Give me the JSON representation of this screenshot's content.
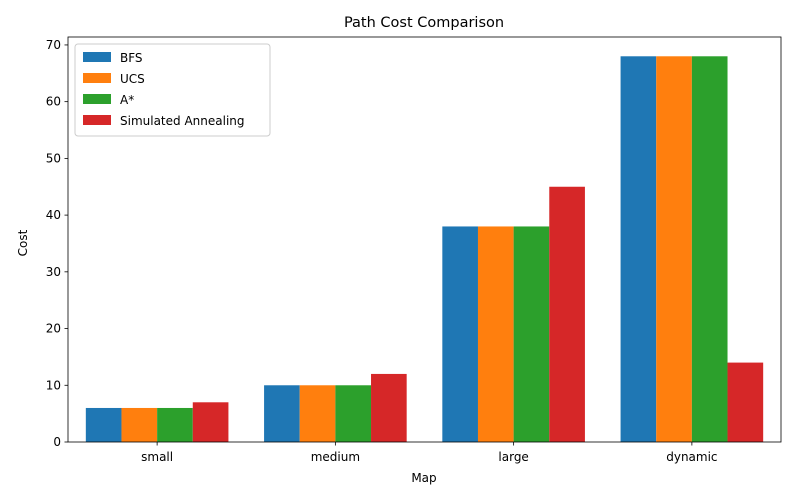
{
  "chart_data": {
    "type": "bar",
    "title": "Path Cost Comparison",
    "xlabel": "Map",
    "ylabel": "Cost",
    "categories": [
      "small",
      "medium",
      "large",
      "dynamic"
    ],
    "series": [
      {
        "name": "BFS",
        "color": "#1f77b4",
        "values": [
          6,
          10,
          38,
          68
        ]
      },
      {
        "name": "UCS",
        "color": "#ff7f0e",
        "values": [
          6,
          10,
          38,
          68
        ]
      },
      {
        "name": "A*",
        "color": "#2ca02c",
        "values": [
          6,
          10,
          38,
          68
        ]
      },
      {
        "name": "Simulated Annealing",
        "color": "#d62728",
        "values": [
          7,
          12,
          45,
          14
        ]
      }
    ],
    "ylim": [
      0,
      71.4
    ],
    "yticks": [
      0,
      10,
      20,
      30,
      40,
      50,
      60,
      70
    ],
    "grid": false,
    "legend_position": "upper-left"
  }
}
